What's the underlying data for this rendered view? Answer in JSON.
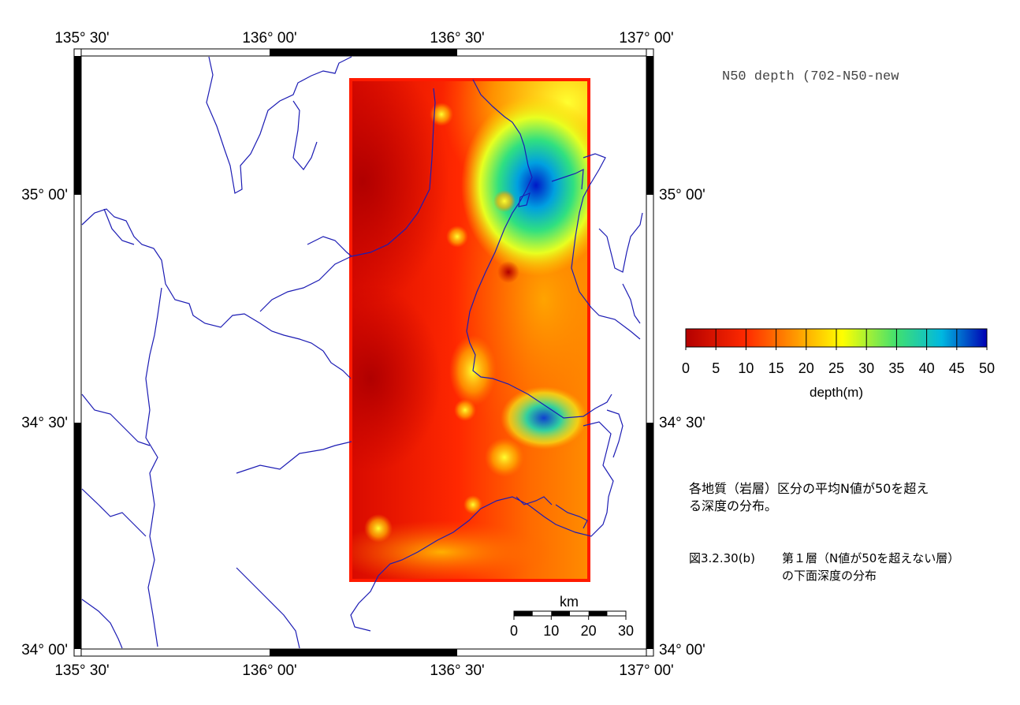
{
  "map_title": "N50 depth (702-N50-new",
  "lon_ticks": [
    "135° 30'",
    "136° 00'",
    "136° 30'",
    "137° 00'"
  ],
  "lat_ticks": [
    "35° 00'",
    "34° 30'",
    "34° 00'"
  ],
  "colorbar": {
    "label": "depth(m)",
    "min": 0,
    "max": 50,
    "ticks": [
      "0",
      "5",
      "10",
      "15",
      "20",
      "25",
      "30",
      "35",
      "40",
      "45",
      "50"
    ],
    "colors": [
      "#c80000",
      "#ff3a00",
      "#ff9a00",
      "#ffff00",
      "#40e070",
      "#00c0d0",
      "#0000c0"
    ]
  },
  "scalebar": {
    "unit": "km",
    "ticks": [
      "0",
      "10",
      "20",
      "30"
    ]
  },
  "note": "各地質（岩層）区分の平均N値が50を超え\nる深度の分布。",
  "figure_caption": {
    "number": "図3.2.30(b)",
    "text": "第１層（N値が50を超えない層）\nの下面深度の分布"
  },
  "style": {
    "coast_color": "#1c1cb4",
    "frame_red": "#ff1a00"
  }
}
